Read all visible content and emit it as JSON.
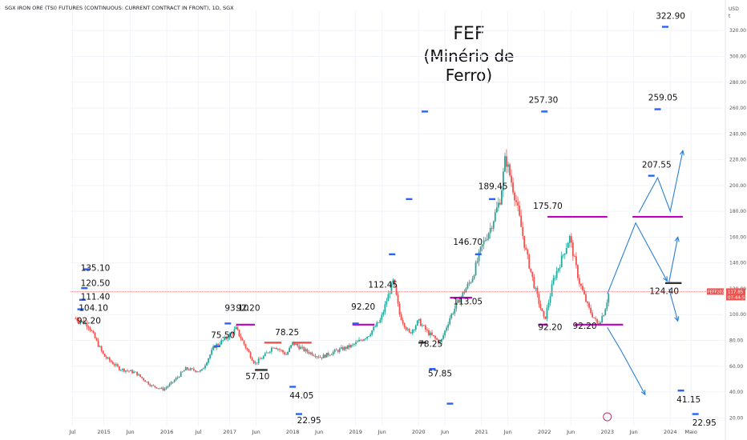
{
  "header": {
    "symbol_line": "SGX IRON ORE (TSI) FUTURES (CONTINUOUS: CURRENT CONTRACT IN FRONT), 1D, SGX"
  },
  "currency": {
    "line1": "USD",
    "line2": "t"
  },
  "title": {
    "line1": "FEF",
    "line2": "(Minério de Ferro)"
  },
  "last_price_tag": {
    "symbol": "FEFF2023",
    "value": "117.85",
    "countdown": "07:44:55"
  },
  "colors": {
    "up": "#26a69a",
    "down": "#ef5350",
    "blue": "#2962ff",
    "magenta": "#c000c0",
    "arrow": "#2a7fd4",
    "red_bar": "#f05050",
    "black_bar": "#333333"
  },
  "chart_data": {
    "type": "line",
    "y_axis": {
      "ticks": [
        20,
        40,
        60,
        80,
        100,
        120,
        140,
        160,
        180,
        200,
        220,
        240,
        260,
        280,
        300,
        320
      ],
      "labels": [
        "20.00",
        "40.00",
        "60.00",
        "80.00",
        "100.00",
        "120.00",
        "140.00",
        "160.00",
        "180.00",
        "200.00",
        "220.00",
        "240.00",
        "260.00",
        "280.00",
        "300.00",
        "320.00"
      ],
      "ylim": [
        14,
        335
      ]
    },
    "x_axis": {
      "ticks": [
        "Jul",
        "2015",
        "Jun",
        "2016",
        "Jul",
        "2017",
        "Jun",
        "2018",
        "Jun",
        "2019",
        "Jun",
        "2020",
        "Jun",
        "2021",
        "Jun",
        "2022",
        "Jun",
        "2023",
        "Jun",
        "2024",
        "Maio"
      ]
    },
    "x_tick_dates": [
      2014.5,
      2015.0,
      2015.42,
      2016.0,
      2016.5,
      2017.0,
      2017.42,
      2018.0,
      2018.42,
      2019.0,
      2019.42,
      2020.0,
      2020.42,
      2021.0,
      2021.42,
      2022.0,
      2022.42,
      2023.0,
      2023.42,
      2024.0,
      2024.33
    ],
    "xlim": [
      2014.47,
      2024.85
    ],
    "series": [
      {
        "values_x": [
          2014.55,
          2014.75,
          2015.0,
          2015.25,
          2015.5,
          2015.75,
          2015.95,
          2016.1,
          2016.3,
          2016.55,
          2016.75,
          2016.95,
          2017.1,
          2017.25,
          2017.4,
          2017.55,
          2017.7,
          2017.9,
          2018.0,
          2018.2,
          2018.45,
          2018.7,
          2018.95,
          2019.2,
          2019.4,
          2019.5,
          2019.6,
          2019.7,
          2019.85,
          2020.0,
          2020.15,
          2020.35,
          2020.5,
          2020.7,
          2020.85,
          2021.0,
          2021.15,
          2021.3,
          2021.38,
          2021.45,
          2021.55,
          2021.7,
          2021.85,
          2022.0,
          2022.15,
          2022.25,
          2022.4,
          2022.55,
          2022.7,
          2022.85,
          2022.95,
          2023.02
        ],
        "values_y": [
          97,
          92,
          68,
          58,
          55,
          45,
          42,
          48,
          58,
          56,
          75,
          82,
          89,
          75,
          62,
          68,
          76,
          69,
          78,
          72,
          67,
          72,
          76,
          84,
          96,
          112,
          126,
          100,
          85,
          95,
          86,
          78,
          98,
          116,
          128,
          152,
          168,
          190,
          222,
          208,
          188,
          150,
          120,
          95,
          128,
          140,
          160,
          126,
          105,
          92,
          102,
          116
        ]
      }
    ],
    "annotations": [
      {
        "text": "135.10",
        "x": 2014.63,
        "y": 134
      },
      {
        "text": "120.50",
        "x": 2014.63,
        "y": 122
      },
      {
        "text": "111.40",
        "x": 2014.63,
        "y": 111.5
      },
      {
        "text": "104.10",
        "x": 2014.6,
        "y": 103
      },
      {
        "text": "92.20",
        "x": 2014.57,
        "y": 93
      },
      {
        "text": "75.50",
        "x": 2016.7,
        "y": 82
      },
      {
        "text": "93.10",
        "x": 2016.92,
        "y": 103
      },
      {
        "text": "92.20",
        "x": 2017.1,
        "y": 103
      },
      {
        "text": "57.10",
        "x": 2017.25,
        "y": 50
      },
      {
        "text": "78.25",
        "x": 2017.72,
        "y": 84
      },
      {
        "text": "44.05",
        "x": 2017.95,
        "y": 35
      },
      {
        "text": "22.95",
        "x": 2018.07,
        "y": 16
      },
      {
        "text": "92.20",
        "x": 2018.93,
        "y": 104
      },
      {
        "text": "112.45",
        "x": 2019.2,
        "y": 121
      },
      {
        "text": "78.25",
        "x": 2020.0,
        "y": 75
      },
      {
        "text": "57.85",
        "x": 2020.15,
        "y": 52
      },
      {
        "text": "113.05",
        "x": 2020.55,
        "y": 108
      },
      {
        "text": "146.70",
        "x": 2020.55,
        "y": 154
      },
      {
        "text": "189.45",
        "x": 2020.95,
        "y": 197
      },
      {
        "text": "257.30",
        "x": 2021.75,
        "y": 264
      },
      {
        "text": "175.70",
        "x": 2021.82,
        "y": 182
      },
      {
        "text": "92.20",
        "x": 2021.9,
        "y": 88
      },
      {
        "text": "92.20",
        "x": 2022.45,
        "y": 89
      },
      {
        "text": "207.55",
        "x": 2023.55,
        "y": 214
      },
      {
        "text": "259.05",
        "x": 2023.65,
        "y": 266
      },
      {
        "text": "322.90",
        "x": 2023.77,
        "y": 329
      },
      {
        "text": "124.40",
        "x": 2023.67,
        "y": 116
      },
      {
        "text": "41.15",
        "x": 2024.1,
        "y": 32
      },
      {
        "text": "22.95",
        "x": 2024.35,
        "y": 14
      }
    ],
    "blue_levels": [
      {
        "x": 2014.72,
        "y": 135.1
      },
      {
        "x": 2014.69,
        "y": 120.5
      },
      {
        "x": 2014.66,
        "y": 111.4
      },
      {
        "x": 2014.63,
        "y": 104.1
      },
      {
        "x": 2016.8,
        "y": 75.5
      },
      {
        "x": 2016.97,
        "y": 93.1
      },
      {
        "x": 2018.0,
        "y": 44.05
      },
      {
        "x": 2018.1,
        "y": 22.95
      },
      {
        "x": 2019.0,
        "y": 93.1
      },
      {
        "x": 2019.58,
        "y": 146.7
      },
      {
        "x": 2019.85,
        "y": 189.45
      },
      {
        "x": 2020.1,
        "y": 257.3
      },
      {
        "x": 2020.22,
        "y": 57.85
      },
      {
        "x": 2020.5,
        "y": 31
      },
      {
        "x": 2020.95,
        "y": 146.7
      },
      {
        "x": 2021.17,
        "y": 189.45
      },
      {
        "x": 2022.0,
        "y": 257.3
      },
      {
        "x": 2023.7,
        "y": 207.55
      },
      {
        "x": 2023.8,
        "y": 259.05
      },
      {
        "x": 2023.92,
        "y": 322.9
      },
      {
        "x": 2024.17,
        "y": 41.15
      },
      {
        "x": 2024.4,
        "y": 22.95
      }
    ],
    "magenta_lines": [
      {
        "x1": 2017.1,
        "x2": 2017.4,
        "y": 92.2
      },
      {
        "x1": 2018.95,
        "x2": 2019.3,
        "y": 92.2
      },
      {
        "x1": 2020.5,
        "x2": 2020.85,
        "y": 113.05
      },
      {
        "x1": 2021.9,
        "x2": 2022.05,
        "y": 92.2
      },
      {
        "x1": 2022.05,
        "x2": 2023.0,
        "y": 175.7
      },
      {
        "x1": 2022.48,
        "x2": 2023.25,
        "y": 92.2
      },
      {
        "x1": 2023.4,
        "x2": 2024.2,
        "y": 175.7
      }
    ],
    "red_bars": [
      {
        "x1": 2017.55,
        "x2": 2017.82,
        "y": 78.25
      },
      {
        "x1": 2018.0,
        "x2": 2018.3,
        "y": 78.25
      }
    ],
    "black_bars": [
      {
        "x1": 2017.4,
        "x2": 2017.6,
        "y": 57.1
      },
      {
        "x1": 2020.0,
        "x2": 2020.12,
        "y": 78.25
      },
      {
        "x1": 2023.92,
        "x2": 2024.18,
        "y": 124.4
      }
    ],
    "projection_paths": [
      [
        [
          2023.0,
          116
        ],
        [
          2023.45,
          171
        ],
        [
          2023.95,
          126
        ]
      ],
      [
        [
          2023.0,
          90
        ],
        [
          2023.22,
          72
        ],
        [
          2023.6,
          38
        ]
      ],
      [
        [
          2023.98,
          125
        ],
        [
          2024.12,
          160
        ]
      ],
      [
        [
          2023.98,
          120
        ],
        [
          2024.12,
          95
        ]
      ],
      [
        [
          2023.5,
          179
        ],
        [
          2023.8,
          206
        ],
        [
          2024.0,
          180
        ],
        [
          2024.2,
          227
        ]
      ]
    ]
  }
}
